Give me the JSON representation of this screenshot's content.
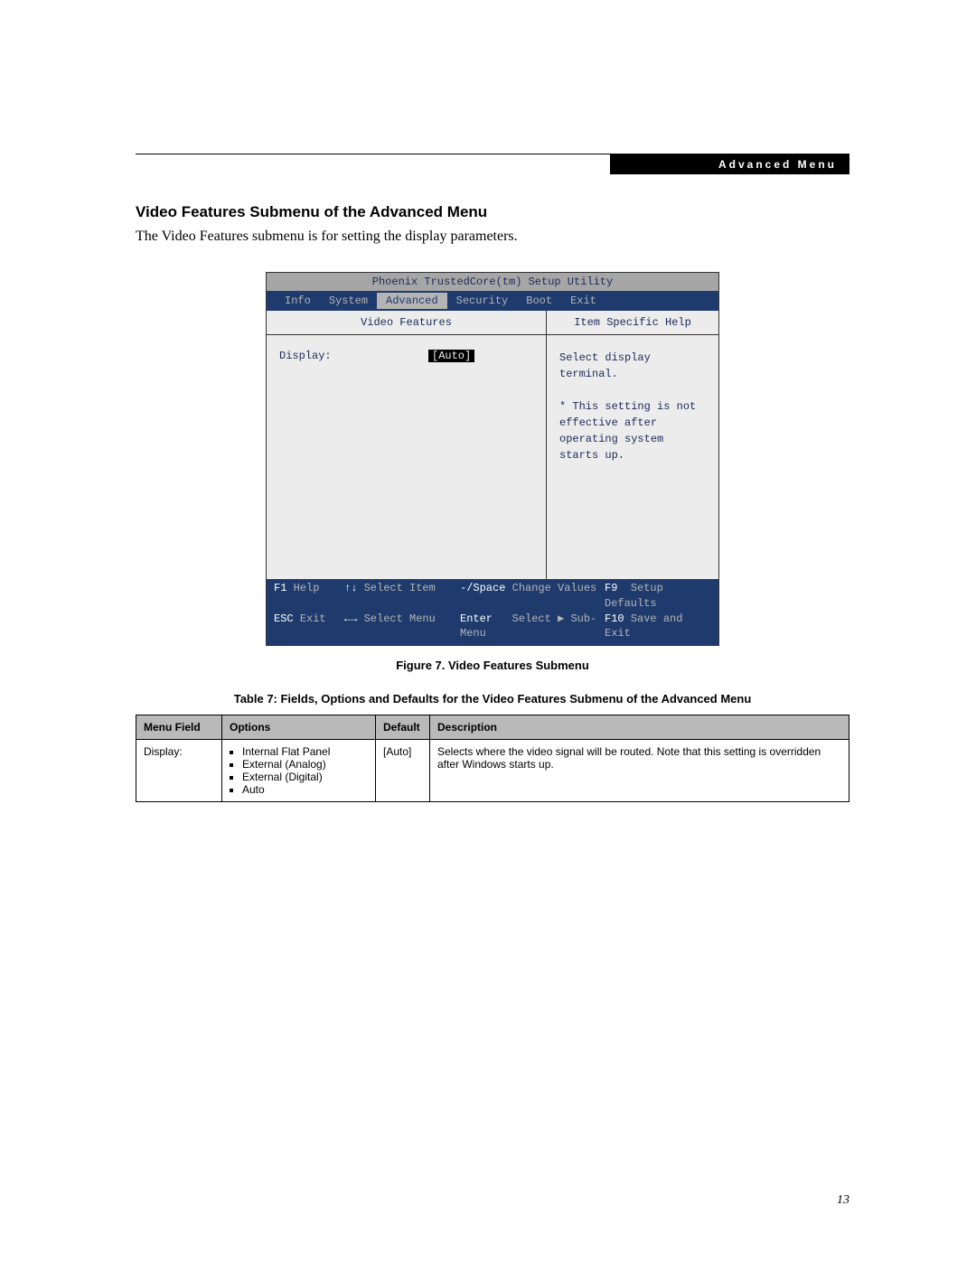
{
  "header_bar": "Advanced Menu",
  "section_title": "Video Features Submenu of the Advanced Menu",
  "intro": "The Video Features submenu is for setting the display parameters.",
  "bios": {
    "utility_title": "Phoenix TrustedCore(tm) Setup Utility",
    "tabs": [
      "Info",
      "System",
      "Advanced",
      "Security",
      "Boot",
      "Exit"
    ],
    "active_tab_index": 2,
    "left_header": "Video Features",
    "right_header": "Item Specific Help",
    "setting_label": "Display:",
    "setting_value": "[Auto]",
    "help_line1": "Select display terminal.",
    "help_line2": "* This setting is not effective after operating system starts up.",
    "footer": {
      "f1": "F1",
      "f1_label": "Help",
      "esc": "ESC",
      "esc_label": "Exit",
      "arrows_ud": "↑↓",
      "select_item": "Select Item",
      "arrows_lr": "←→",
      "select_menu": "Select Menu",
      "minus_space": "-/Space",
      "change_values": "Change Values",
      "enter": "Enter",
      "select_sub": "Select ▶ Sub-Menu",
      "f9": "F9",
      "setup_defaults": "Setup Defaults",
      "f10": "F10",
      "save_exit": "Save and Exit"
    }
  },
  "figure_caption": "Figure 7.  Video Features Submenu",
  "table_caption": "Table 7: Fields, Options and Defaults for the Video Features Submenu of the Advanced Menu",
  "table": {
    "headers": [
      "Menu Field",
      "Options",
      "Default",
      "Description"
    ],
    "row": {
      "menu_field": "Display:",
      "options": [
        "Internal Flat Panel",
        "External (Analog)",
        "External (Digital)",
        "Auto"
      ],
      "default": "[Auto]",
      "description": "Selects where the video signal will be routed. Note that this setting is overridden after Windows starts up."
    }
  },
  "page_number": "13"
}
